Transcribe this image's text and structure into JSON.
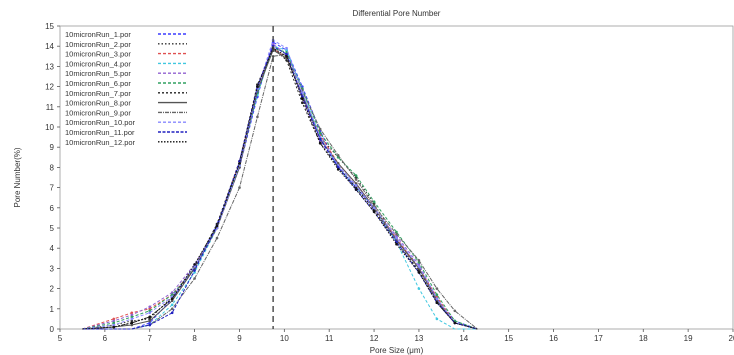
{
  "chart_data": {
    "type": "line",
    "title": "Differential Pore Number",
    "xlabel": "Pore Size (μm)",
    "ylabel": "Pore Number(%)",
    "xlim": [
      5,
      20
    ],
    "ylim": [
      0,
      15
    ],
    "xticks": [
      5,
      6,
      7,
      8,
      9,
      10,
      11,
      12,
      13,
      14,
      15,
      16,
      17,
      18,
      19,
      20
    ],
    "yticks": [
      0,
      1,
      2,
      3,
      4,
      5,
      6,
      7,
      8,
      9,
      10,
      11,
      12,
      13,
      14,
      15
    ],
    "grid": false,
    "legend_position": "top-left",
    "reference_line": {
      "x": 9.75,
      "style": "dashed",
      "color": "#444444"
    },
    "series": [
      {
        "name": "10micronRun_1.por",
        "color": "#3b3bff",
        "dash": "3,2",
        "x": [
          5.5,
          6.2,
          6.6,
          7.0,
          7.5,
          8.0,
          8.5,
          9.0,
          9.4,
          9.75,
          10.05,
          10.4,
          10.8,
          11.2,
          11.6,
          12.0,
          12.5,
          13.0,
          13.4,
          13.8,
          14.3
        ],
        "y": [
          0,
          0,
          0,
          0.3,
          1.5,
          3.0,
          5.2,
          8.0,
          11.5,
          14.2,
          13.8,
          12.0,
          9.8,
          8.0,
          7.0,
          6.0,
          4.5,
          3.0,
          1.5,
          0.4,
          0
        ]
      },
      {
        "name": "10micronRun_2.por",
        "color": "#333333",
        "dash": "1.5,2",
        "x": [
          5.5,
          6.2,
          6.6,
          7.0,
          7.5,
          8.0,
          8.5,
          9.0,
          9.4,
          9.75,
          10.05,
          10.4,
          10.8,
          11.2,
          11.6,
          12.0,
          12.5,
          13.0,
          13.4,
          13.8,
          14.3
        ],
        "y": [
          0,
          0.2,
          0.4,
          0.5,
          1.6,
          3.1,
          5.0,
          8.2,
          12.0,
          13.8,
          13.5,
          11.5,
          9.5,
          8.5,
          7.5,
          6.2,
          4.4,
          3.1,
          1.4,
          0.3,
          0
        ]
      },
      {
        "name": "10micronRun_3.por",
        "color": "#e05050",
        "dash": "3,2",
        "x": [
          5.5,
          6.2,
          6.6,
          7.0,
          7.5,
          8.0,
          8.5,
          9.0,
          9.4,
          9.75,
          10.05,
          10.4,
          10.8,
          11.2,
          11.6,
          12.0,
          12.5,
          13.0,
          13.4,
          13.8,
          14.3
        ],
        "y": [
          0,
          0.5,
          0.8,
          1.0,
          1.7,
          3.0,
          5.1,
          8.3,
          11.8,
          13.9,
          13.4,
          11.6,
          9.6,
          8.2,
          7.2,
          6.0,
          4.5,
          3.0,
          1.6,
          0.3,
          0
        ]
      },
      {
        "name": "10micronRun_4.por",
        "color": "#40c8e0",
        "dash": "3,2",
        "x": [
          5.5,
          6.2,
          6.6,
          7.0,
          7.5,
          8.0,
          8.5,
          9.0,
          9.4,
          9.75,
          10.05,
          10.4,
          10.8,
          11.2,
          11.6,
          12.0,
          12.5,
          13.0,
          13.4,
          13.8,
          14.3
        ],
        "y": [
          0,
          0,
          0,
          0.2,
          1.2,
          2.8,
          5.0,
          8.1,
          11.6,
          14.0,
          13.8,
          11.8,
          9.5,
          8.0,
          7.0,
          6.0,
          4.3,
          2.0,
          0.5,
          0,
          0
        ]
      },
      {
        "name": "10micronRun_5.por",
        "color": "#9060d0",
        "dash": "3,2",
        "x": [
          5.5,
          6.2,
          6.6,
          7.0,
          7.5,
          8.0,
          8.5,
          9.0,
          9.4,
          9.75,
          10.05,
          10.4,
          10.8,
          11.2,
          11.6,
          12.0,
          12.5,
          13.0,
          13.4,
          13.8,
          14.3
        ],
        "y": [
          0,
          0.4,
          0.7,
          1.1,
          1.8,
          3.2,
          5.0,
          8.0,
          11.9,
          14.1,
          13.6,
          11.4,
          9.3,
          8.1,
          7.1,
          5.9,
          4.6,
          3.2,
          1.5,
          0.3,
          0
        ]
      },
      {
        "name": "10micronRun_6.por",
        "color": "#30a060",
        "dash": "3,2",
        "x": [
          5.5,
          6.2,
          6.6,
          7.0,
          7.5,
          8.0,
          8.5,
          9.0,
          9.4,
          9.75,
          10.05,
          10.4,
          10.8,
          11.2,
          11.6,
          12.0,
          12.5,
          13.0,
          13.4,
          13.8,
          14.3
        ],
        "y": [
          0,
          0.3,
          0.6,
          0.9,
          1.7,
          3.0,
          5.1,
          8.1,
          11.7,
          13.9,
          13.7,
          11.9,
          9.7,
          8.5,
          7.6,
          6.3,
          4.8,
          3.3,
          1.7,
          0.4,
          0
        ]
      },
      {
        "name": "10micronRun_7.por",
        "color": "#222222",
        "dash": "2,2",
        "x": [
          5.5,
          6.2,
          6.6,
          7.0,
          7.5,
          8.0,
          8.5,
          9.0,
          9.4,
          9.75,
          10.05,
          10.4,
          10.8,
          11.2,
          11.6,
          12.0,
          12.5,
          13.0,
          13.4,
          13.8,
          14.3
        ],
        "y": [
          0,
          0.1,
          0.3,
          0.6,
          1.5,
          3.1,
          5.2,
          8.3,
          12.1,
          13.9,
          13.3,
          11.2,
          9.2,
          8.0,
          7.0,
          5.9,
          4.3,
          2.9,
          1.3,
          0.3,
          0
        ]
      },
      {
        "name": "10micronRun_8.por",
        "color": "#555555",
        "dash": "",
        "x": [
          5.5,
          6.2,
          6.6,
          7.0,
          7.5,
          8.0,
          8.5,
          9.0,
          9.4,
          9.75,
          10.05,
          10.4,
          10.8,
          11.2,
          11.6,
          12.0,
          12.5,
          13.0,
          13.4,
          13.8,
          14.3
        ],
        "y": [
          0,
          0.1,
          0.2,
          0.4,
          1.4,
          3.0,
          5.0,
          8.0,
          11.8,
          13.8,
          13.4,
          11.6,
          9.4,
          8.2,
          7.2,
          6.0,
          4.4,
          3.0,
          1.4,
          0.3,
          0
        ]
      },
      {
        "name": "10micronRun_9.por",
        "color": "#666666",
        "dash": "4,1,1,1",
        "x": [
          5.5,
          6.2,
          6.6,
          7.0,
          7.5,
          8.0,
          8.5,
          9.0,
          9.4,
          9.75,
          10.05,
          10.4,
          10.8,
          11.2,
          11.6,
          12.0,
          12.5,
          13.0,
          13.4,
          13.8,
          14.3
        ],
        "y": [
          0,
          0,
          0,
          0.2,
          1.0,
          2.5,
          4.5,
          7.0,
          10.5,
          13.5,
          13.6,
          11.8,
          9.9,
          8.6,
          7.4,
          6.1,
          4.7,
          3.4,
          2.0,
          0.9,
          0
        ]
      },
      {
        "name": "10micronRun_10.por",
        "color": "#8888ff",
        "dash": "3,2",
        "x": [
          5.5,
          6.2,
          6.6,
          7.0,
          7.5,
          8.0,
          8.5,
          9.0,
          9.4,
          9.75,
          10.05,
          10.4,
          10.8,
          11.2,
          11.6,
          12.0,
          12.5,
          13.0,
          13.4,
          13.8,
          14.3
        ],
        "y": [
          0,
          0.2,
          0.5,
          0.8,
          1.6,
          3.1,
          5.0,
          8.1,
          11.9,
          14.3,
          13.9,
          11.7,
          9.5,
          8.1,
          7.1,
          6.0,
          4.5,
          3.1,
          1.5,
          0.3,
          0
        ]
      },
      {
        "name": "10micronRun_11.por",
        "color": "#2020c0",
        "dash": "3,1.5",
        "x": [
          5.5,
          6.2,
          6.6,
          7.0,
          7.5,
          8.0,
          8.5,
          9.0,
          9.4,
          9.75,
          10.05,
          10.4,
          10.8,
          11.2,
          11.6,
          12.0,
          12.5,
          13.0,
          13.4,
          13.8,
          14.3
        ],
        "y": [
          0,
          0,
          0,
          0.2,
          0.8,
          2.9,
          5.1,
          8.3,
          12.0,
          14.0,
          13.6,
          11.5,
          9.4,
          8.0,
          6.9,
          5.8,
          4.3,
          2.8,
          1.3,
          0.3,
          0
        ]
      },
      {
        "name": "10micronRun_12.por",
        "color": "#111111",
        "dash": "1.5,1.5",
        "x": [
          5.5,
          6.2,
          6.6,
          7.0,
          7.5,
          8.0,
          8.5,
          9.0,
          9.4,
          9.75,
          10.05,
          10.4,
          10.8,
          11.2,
          11.6,
          12.0,
          12.5,
          13.0,
          13.4,
          13.8,
          14.3
        ],
        "y": [
          0,
          0.1,
          0.3,
          0.6,
          1.5,
          3.2,
          5.1,
          8.2,
          12.0,
          13.9,
          13.5,
          11.4,
          9.2,
          7.9,
          6.9,
          5.8,
          4.2,
          2.8,
          1.3,
          0.3,
          0
        ]
      }
    ]
  }
}
